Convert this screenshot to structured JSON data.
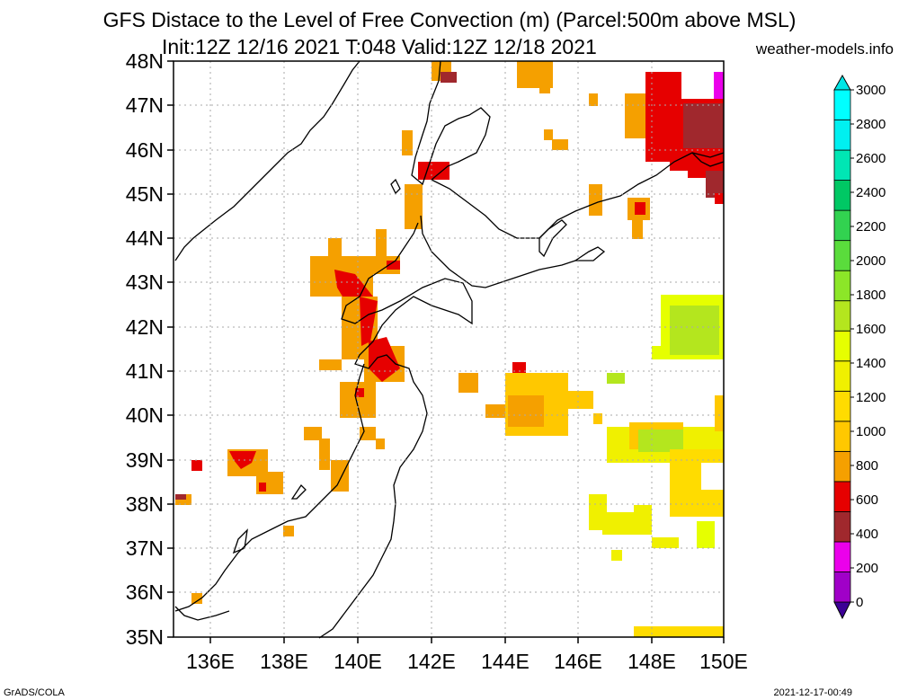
{
  "header": {
    "title": "GFS Distace to the Level of Free Convection (m) (Parcel:500m above MSL)",
    "subtitle": "Init:12Z 12/16 2021 T:048 Valid:12Z 12/18 2021",
    "site": "weather-models.info"
  },
  "footer": {
    "left": "GrADS/COLA",
    "right": "2021-12-17-00:49"
  },
  "map": {
    "lon_range": [
      135,
      150
    ],
    "lat_range": [
      35,
      48
    ],
    "lat_labels": [
      "35N",
      "36N",
      "37N",
      "38N",
      "39N",
      "40N",
      "41N",
      "42N",
      "43N",
      "44N",
      "45N",
      "46N",
      "47N",
      "48N"
    ],
    "lon_labels": [
      "136E",
      "138E",
      "140E",
      "142E",
      "144E",
      "146E",
      "148E",
      "150E"
    ],
    "lon_label_values": [
      136,
      138,
      140,
      142,
      144,
      146,
      148,
      150
    ]
  },
  "colorbar": {
    "levels": [
      "0",
      "200",
      "400",
      "600",
      "800",
      "1000",
      "1200",
      "1400",
      "1600",
      "1800",
      "2000",
      "2200",
      "2400",
      "2600",
      "2800",
      "3000"
    ],
    "colors": [
      "#a000c8",
      "#eb00eb",
      "#a0282d",
      "#e60000",
      "#f5a000",
      "#ffc800",
      "#ffdc00",
      "#f0f000",
      "#e6ff00",
      "#b4e61e",
      "#8ce628",
      "#5adc3c",
      "#32d250",
      "#00c864",
      "#00e6b4",
      "#00f0f0",
      "#00ffff"
    ],
    "bottom_color": "#3c0096",
    "top_color": "#00e6e6"
  }
}
